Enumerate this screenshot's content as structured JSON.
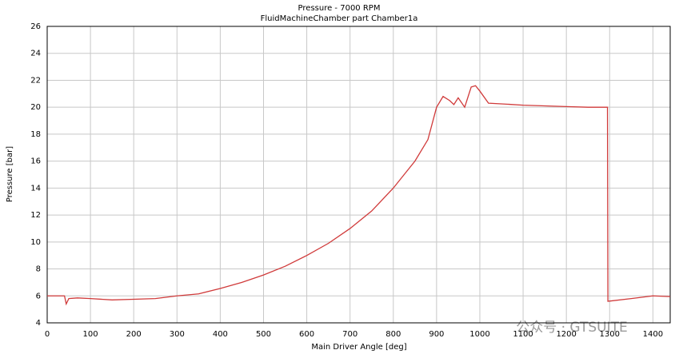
{
  "chart_data": {
    "type": "line",
    "title": "Pressure - 7000 RPM",
    "subtitle": "FluidMachineChamber part Chamber1a",
    "x_label": "Main Driver Angle [deg]",
    "y_label": "Pressure [bar]",
    "watermark": "公众号 · GTSUITE",
    "xlim": [
      0,
      1440
    ],
    "xticks": [
      0,
      100,
      200,
      300,
      400,
      500,
      600,
      700,
      800,
      900,
      1000,
      1100,
      1200,
      1300,
      1400
    ],
    "ylim": [
      4,
      26
    ],
    "yticks": [
      4,
      6,
      8,
      10,
      12,
      14,
      16,
      18,
      20,
      22,
      24,
      26
    ],
    "grid": true,
    "x": [
      0,
      40,
      44,
      50,
      70,
      100,
      150,
      200,
      250,
      300,
      350,
      400,
      450,
      500,
      550,
      600,
      650,
      700,
      750,
      800,
      850,
      880,
      900,
      915,
      930,
      940,
      950,
      965,
      980,
      990,
      1000,
      1020,
      1050,
      1100,
      1150,
      1200,
      1250,
      1295,
      1296,
      1350,
      1400,
      1440
    ],
    "series": [
      {
        "name": "Pressure",
        "color": "#d03a3a",
        "values": [
          6.0,
          6.0,
          5.4,
          5.8,
          5.85,
          5.8,
          5.7,
          5.75,
          5.8,
          6.0,
          6.15,
          6.55,
          7.0,
          7.55,
          8.2,
          9.0,
          9.9,
          11.0,
          12.3,
          14.0,
          16.0,
          17.6,
          20.0,
          20.8,
          20.5,
          20.2,
          20.7,
          20.0,
          21.5,
          21.6,
          21.2,
          20.3,
          20.25,
          20.15,
          20.1,
          20.05,
          20.0,
          20.0,
          5.6,
          5.8,
          6.0,
          5.95
        ]
      }
    ]
  }
}
